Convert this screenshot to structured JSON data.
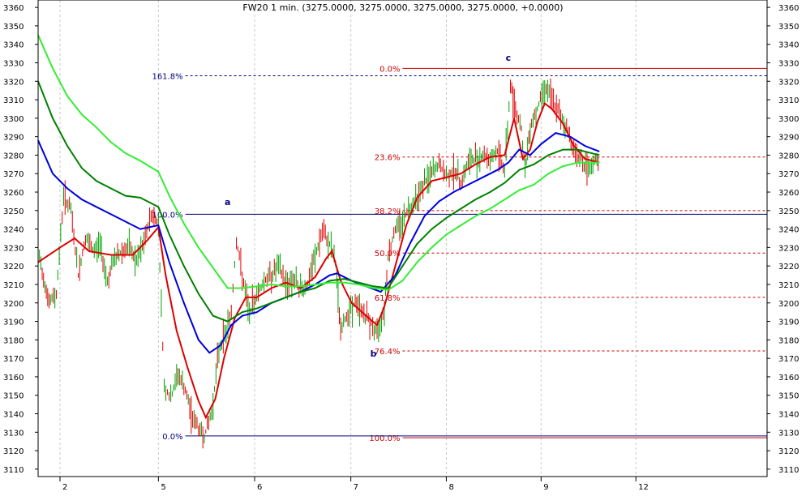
{
  "chart_data": {
    "type": "line",
    "title": "FW20 1 min. (3275.0000, 3275.0000, 3275.0000, 3275.0000, +0.0000)",
    "ylim": [
      3106,
      3364
    ],
    "y_ticks": [
      3110,
      3120,
      3130,
      3140,
      3150,
      3160,
      3170,
      3180,
      3190,
      3200,
      3210,
      3220,
      3230,
      3240,
      3250,
      3260,
      3270,
      3280,
      3290,
      3300,
      3310,
      3320,
      3330,
      3340,
      3350,
      3360
    ],
    "x_range": [
      0,
      100
    ],
    "x_ticks": [
      {
        "label": "2",
        "x": 3
      },
      {
        "label": "5",
        "x": 16.5
      },
      {
        "label": "6",
        "x": 29.7
      },
      {
        "label": "7",
        "x": 42.9
      },
      {
        "label": "8",
        "x": 56.0
      },
      {
        "label": "9",
        "x": 69.0
      },
      {
        "label": "12",
        "x": 82.0
      }
    ],
    "grid": true,
    "colors": {
      "up_bar": "#00a000",
      "down_bar": "#e00000",
      "fast_avg": "#dd0000",
      "mid_avg": "#0000dd",
      "slow_avg": "#008000",
      "slowest_avg": "#33ee33",
      "fib_red": "#cc0000",
      "fib_blue": "#000080",
      "grid": "#c8c8c8"
    },
    "price_series": [
      {
        "x": 0,
        "y": 3228
      },
      {
        "x": 1.5,
        "y": 3200
      },
      {
        "x": 2.5,
        "y": 3205
      },
      {
        "x": 3.5,
        "y": 3258
      },
      {
        "x": 4.5,
        "y": 3250
      },
      {
        "x": 5.5,
        "y": 3215
      },
      {
        "x": 6.5,
        "y": 3235
      },
      {
        "x": 7.5,
        "y": 3228
      },
      {
        "x": 8.5,
        "y": 3232
      },
      {
        "x": 9.5,
        "y": 3212
      },
      {
        "x": 10.5,
        "y": 3224
      },
      {
        "x": 11.5,
        "y": 3228
      },
      {
        "x": 12.5,
        "y": 3230
      },
      {
        "x": 13.5,
        "y": 3222
      },
      {
        "x": 14.5,
        "y": 3232
      },
      {
        "x": 15.5,
        "y": 3248
      },
      {
        "x": 16.5,
        "y": 3243
      },
      {
        "x": 17.3,
        "y": 3155
      },
      {
        "x": 18.2,
        "y": 3148
      },
      {
        "x": 19.2,
        "y": 3162
      },
      {
        "x": 20.2,
        "y": 3152
      },
      {
        "x": 21.0,
        "y": 3140
      },
      {
        "x": 22.0,
        "y": 3132
      },
      {
        "x": 22.8,
        "y": 3128
      },
      {
        "x": 23.8,
        "y": 3140
      },
      {
        "x": 24.8,
        "y": 3175
      },
      {
        "x": 25.8,
        "y": 3185
      },
      {
        "x": 26.5,
        "y": 3195
      },
      {
        "x": 27.2,
        "y": 3234
      },
      {
        "x": 28.2,
        "y": 3210
      },
      {
        "x": 29.0,
        "y": 3194
      },
      {
        "x": 30.0,
        "y": 3205
      },
      {
        "x": 31.0,
        "y": 3212
      },
      {
        "x": 32.0,
        "y": 3215
      },
      {
        "x": 33.0,
        "y": 3220
      },
      {
        "x": 34.0,
        "y": 3210
      },
      {
        "x": 35.0,
        "y": 3213
      },
      {
        "x": 36.0,
        "y": 3207
      },
      {
        "x": 37.0,
        "y": 3210
      },
      {
        "x": 38.0,
        "y": 3225
      },
      {
        "x": 39.0,
        "y": 3238
      },
      {
        "x": 40.0,
        "y": 3232
      },
      {
        "x": 40.8,
        "y": 3222
      },
      {
        "x": 41.5,
        "y": 3185
      },
      {
        "x": 42.5,
        "y": 3195
      },
      {
        "x": 43.5,
        "y": 3200
      },
      {
        "x": 44.5,
        "y": 3195
      },
      {
        "x": 45.5,
        "y": 3190
      },
      {
        "x": 46.5,
        "y": 3183
      },
      {
        "x": 47.5,
        "y": 3198
      },
      {
        "x": 48.0,
        "y": 3225
      },
      {
        "x": 49.0,
        "y": 3240
      },
      {
        "x": 50.0,
        "y": 3245
      },
      {
        "x": 51.0,
        "y": 3252
      },
      {
        "x": 52.0,
        "y": 3258
      },
      {
        "x": 53.0,
        "y": 3265
      },
      {
        "x": 54.0,
        "y": 3270
      },
      {
        "x": 55.0,
        "y": 3275
      },
      {
        "x": 56.0,
        "y": 3268
      },
      {
        "x": 57.0,
        "y": 3272
      },
      {
        "x": 58.0,
        "y": 3265
      },
      {
        "x": 59.0,
        "y": 3276
      },
      {
        "x": 60.0,
        "y": 3278
      },
      {
        "x": 61.0,
        "y": 3280
      },
      {
        "x": 62.0,
        "y": 3278
      },
      {
        "x": 63.0,
        "y": 3282
      },
      {
        "x": 64.0,
        "y": 3272
      },
      {
        "x": 64.8,
        "y": 3318
      },
      {
        "x": 65.5,
        "y": 3305
      },
      {
        "x": 66.3,
        "y": 3295
      },
      {
        "x": 66.8,
        "y": 3270
      },
      {
        "x": 67.5,
        "y": 3296
      },
      {
        "x": 68.5,
        "y": 3305
      },
      {
        "x": 69.5,
        "y": 3318
      },
      {
        "x": 70.5,
        "y": 3310
      },
      {
        "x": 71.5,
        "y": 3302
      },
      {
        "x": 72.5,
        "y": 3295
      },
      {
        "x": 73.5,
        "y": 3282
      },
      {
        "x": 74.5,
        "y": 3278
      },
      {
        "x": 75.5,
        "y": 3270
      },
      {
        "x": 76.5,
        "y": 3278
      },
      {
        "x": 77.0,
        "y": 3275
      }
    ],
    "series": [
      {
        "values": [
          {
            "x": 0,
            "y": 3222
          },
          {
            "x": 3,
            "y": 3230
          },
          {
            "x": 5,
            "y": 3235
          },
          {
            "x": 7,
            "y": 3228
          },
          {
            "x": 10,
            "y": 3226
          },
          {
            "x": 13,
            "y": 3226
          },
          {
            "x": 15,
            "y": 3234
          },
          {
            "x": 16.5,
            "y": 3241
          },
          {
            "x": 17.5,
            "y": 3215
          },
          {
            "x": 19,
            "y": 3185
          },
          {
            "x": 20.5,
            "y": 3165
          },
          {
            "x": 22,
            "y": 3147
          },
          {
            "x": 23,
            "y": 3138
          },
          {
            "x": 24.3,
            "y": 3148
          },
          {
            "x": 25.5,
            "y": 3170
          },
          {
            "x": 27,
            "y": 3192
          },
          {
            "x": 28.5,
            "y": 3203
          },
          {
            "x": 30,
            "y": 3203
          },
          {
            "x": 32,
            "y": 3208
          },
          {
            "x": 34,
            "y": 3211
          },
          {
            "x": 36,
            "y": 3208
          },
          {
            "x": 38,
            "y": 3214
          },
          {
            "x": 39.5,
            "y": 3224
          },
          {
            "x": 40.3,
            "y": 3228
          },
          {
            "x": 41.5,
            "y": 3212
          },
          {
            "x": 43,
            "y": 3200
          },
          {
            "x": 45,
            "y": 3193
          },
          {
            "x": 46.5,
            "y": 3188
          },
          {
            "x": 47.5,
            "y": 3198
          },
          {
            "x": 49,
            "y": 3220
          },
          {
            "x": 50.5,
            "y": 3242
          },
          {
            "x": 52,
            "y": 3257
          },
          {
            "x": 54,
            "y": 3266
          },
          {
            "x": 56,
            "y": 3268
          },
          {
            "x": 58,
            "y": 3270
          },
          {
            "x": 60,
            "y": 3275
          },
          {
            "x": 62,
            "y": 3279
          },
          {
            "x": 64,
            "y": 3280
          },
          {
            "x": 65.3,
            "y": 3300
          },
          {
            "x": 66.5,
            "y": 3278
          },
          {
            "x": 67.5,
            "y": 3283
          },
          {
            "x": 68.5,
            "y": 3298
          },
          {
            "x": 69.5,
            "y": 3308
          },
          {
            "x": 70.5,
            "y": 3305
          },
          {
            "x": 72,
            "y": 3297
          },
          {
            "x": 73.5,
            "y": 3285
          },
          {
            "x": 75,
            "y": 3278
          },
          {
            "x": 77,
            "y": 3276
          }
        ]
      },
      {
        "values": [
          {
            "x": 0,
            "y": 3288
          },
          {
            "x": 2,
            "y": 3270
          },
          {
            "x": 4,
            "y": 3262
          },
          {
            "x": 6,
            "y": 3256
          },
          {
            "x": 8,
            "y": 3252
          },
          {
            "x": 10,
            "y": 3248
          },
          {
            "x": 12,
            "y": 3244
          },
          {
            "x": 14,
            "y": 3240
          },
          {
            "x": 16.5,
            "y": 3242
          },
          {
            "x": 18,
            "y": 3222
          },
          {
            "x": 20,
            "y": 3200
          },
          {
            "x": 22,
            "y": 3180
          },
          {
            "x": 23.5,
            "y": 3173
          },
          {
            "x": 25,
            "y": 3177
          },
          {
            "x": 26.5,
            "y": 3188
          },
          {
            "x": 28,
            "y": 3193
          },
          {
            "x": 30,
            "y": 3195
          },
          {
            "x": 32,
            "y": 3200
          },
          {
            "x": 34,
            "y": 3203
          },
          {
            "x": 36,
            "y": 3206
          },
          {
            "x": 38,
            "y": 3210
          },
          {
            "x": 40,
            "y": 3215
          },
          {
            "x": 41,
            "y": 3216
          },
          {
            "x": 43,
            "y": 3212
          },
          {
            "x": 45,
            "y": 3209
          },
          {
            "x": 47,
            "y": 3206
          },
          {
            "x": 49,
            "y": 3215
          },
          {
            "x": 51,
            "y": 3232
          },
          {
            "x": 53,
            "y": 3247
          },
          {
            "x": 55,
            "y": 3255
          },
          {
            "x": 57,
            "y": 3260
          },
          {
            "x": 59,
            "y": 3264
          },
          {
            "x": 61,
            "y": 3268
          },
          {
            "x": 63,
            "y": 3272
          },
          {
            "x": 64.5,
            "y": 3276
          },
          {
            "x": 66,
            "y": 3283
          },
          {
            "x": 67.5,
            "y": 3280
          },
          {
            "x": 69,
            "y": 3286
          },
          {
            "x": 71,
            "y": 3292
          },
          {
            "x": 73,
            "y": 3290
          },
          {
            "x": 75,
            "y": 3285
          },
          {
            "x": 77,
            "y": 3282
          }
        ]
      },
      {
        "values": [
          {
            "x": 0,
            "y": 3320
          },
          {
            "x": 2,
            "y": 3300
          },
          {
            "x": 4,
            "y": 3285
          },
          {
            "x": 6,
            "y": 3273
          },
          {
            "x": 8,
            "y": 3266
          },
          {
            "x": 10,
            "y": 3262
          },
          {
            "x": 12,
            "y": 3258
          },
          {
            "x": 14,
            "y": 3257
          },
          {
            "x": 16.5,
            "y": 3252
          },
          {
            "x": 18,
            "y": 3237
          },
          {
            "x": 20,
            "y": 3220
          },
          {
            "x": 22,
            "y": 3205
          },
          {
            "x": 24,
            "y": 3193
          },
          {
            "x": 26,
            "y": 3190
          },
          {
            "x": 28,
            "y": 3195
          },
          {
            "x": 30,
            "y": 3197
          },
          {
            "x": 32,
            "y": 3200
          },
          {
            "x": 34,
            "y": 3203
          },
          {
            "x": 36,
            "y": 3206
          },
          {
            "x": 38,
            "y": 3208
          },
          {
            "x": 40,
            "y": 3212
          },
          {
            "x": 42,
            "y": 3213
          },
          {
            "x": 44,
            "y": 3211
          },
          {
            "x": 46,
            "y": 3209
          },
          {
            "x": 48,
            "y": 3208
          },
          {
            "x": 50,
            "y": 3220
          },
          {
            "x": 52,
            "y": 3232
          },
          {
            "x": 54,
            "y": 3240
          },
          {
            "x": 56,
            "y": 3246
          },
          {
            "x": 58,
            "y": 3251
          },
          {
            "x": 60,
            "y": 3256
          },
          {
            "x": 62,
            "y": 3260
          },
          {
            "x": 64,
            "y": 3265
          },
          {
            "x": 66,
            "y": 3272
          },
          {
            "x": 68,
            "y": 3275
          },
          {
            "x": 70,
            "y": 3280
          },
          {
            "x": 72,
            "y": 3283
          },
          {
            "x": 74,
            "y": 3283
          },
          {
            "x": 76,
            "y": 3281
          },
          {
            "x": 77,
            "y": 3280
          }
        ]
      },
      {
        "values": [
          {
            "x": 0,
            "y": 3345
          },
          {
            "x": 2,
            "y": 3327
          },
          {
            "x": 4,
            "y": 3312
          },
          {
            "x": 6,
            "y": 3302
          },
          {
            "x": 8,
            "y": 3295
          },
          {
            "x": 10,
            "y": 3287
          },
          {
            "x": 12,
            "y": 3281
          },
          {
            "x": 14,
            "y": 3277
          },
          {
            "x": 16.5,
            "y": 3271
          },
          {
            "x": 18,
            "y": 3258
          },
          {
            "x": 20,
            "y": 3243
          },
          {
            "x": 22,
            "y": 3230
          },
          {
            "x": 24,
            "y": 3219
          },
          {
            "x": 26,
            "y": 3208
          },
          {
            "x": 28,
            "y": 3208
          },
          {
            "x": 30,
            "y": 3209
          },
          {
            "x": 32,
            "y": 3210
          },
          {
            "x": 34,
            "y": 3209
          },
          {
            "x": 36,
            "y": 3209
          },
          {
            "x": 38,
            "y": 3210
          },
          {
            "x": 40,
            "y": 3211
          },
          {
            "x": 42,
            "y": 3211
          },
          {
            "x": 44,
            "y": 3210
          },
          {
            "x": 46,
            "y": 3208
          },
          {
            "x": 48,
            "y": 3207
          },
          {
            "x": 50,
            "y": 3212
          },
          {
            "x": 52,
            "y": 3222
          },
          {
            "x": 54,
            "y": 3230
          },
          {
            "x": 56,
            "y": 3237
          },
          {
            "x": 58,
            "y": 3242
          },
          {
            "x": 60,
            "y": 3247
          },
          {
            "x": 62,
            "y": 3251
          },
          {
            "x": 64,
            "y": 3256
          },
          {
            "x": 66,
            "y": 3261
          },
          {
            "x": 68,
            "y": 3264
          },
          {
            "x": 70,
            "y": 3270
          },
          {
            "x": 72,
            "y": 3274
          },
          {
            "x": 74,
            "y": 3276
          },
          {
            "x": 76,
            "y": 3276
          },
          {
            "x": 77,
            "y": 3276
          }
        ]
      }
    ],
    "fib_levels": [
      {
        "label": "0.0%",
        "y": 3327,
        "color": "#cc0000",
        "style": "solid",
        "x_start": 50.0
      },
      {
        "label": "23.6%",
        "y": 3279,
        "color": "#cc0000",
        "style": "dashed",
        "x_start": 50.0
      },
      {
        "label": "38.2%",
        "y": 3250,
        "color": "#cc0000",
        "style": "dashed",
        "x_start": 50.0
      },
      {
        "label": "50.0%",
        "y": 3227,
        "color": "#cc0000",
        "style": "dashed",
        "x_start": 50.0
      },
      {
        "label": "61.8%",
        "y": 3203,
        "color": "#cc0000",
        "style": "dashed",
        "x_start": 50.0
      },
      {
        "label": "76.4%",
        "y": 3174,
        "color": "#cc0000",
        "style": "dashed",
        "x_start": 50.0
      },
      {
        "label": "100.0%",
        "y": 3127,
        "color": "#cc0000",
        "style": "solid",
        "x_start": 50.0
      },
      {
        "label": "161.8%",
        "y": 3323,
        "color": "#000080",
        "style": "dashed",
        "x_start": 20.2
      },
      {
        "label": "100.0%",
        "y": 3248,
        "color": "#000080",
        "style": "solid",
        "x_start": 20.2
      },
      {
        "label": "0.0%",
        "y": 3128,
        "color": "#000080",
        "style": "solid",
        "x_start": 20.2
      }
    ],
    "annotations": [
      {
        "text": "a",
        "x": 26.0,
        "y": 3253
      },
      {
        "text": "b",
        "x": 46.0,
        "y": 3171
      },
      {
        "text": "c",
        "x": 64.5,
        "y": 3331
      }
    ]
  }
}
